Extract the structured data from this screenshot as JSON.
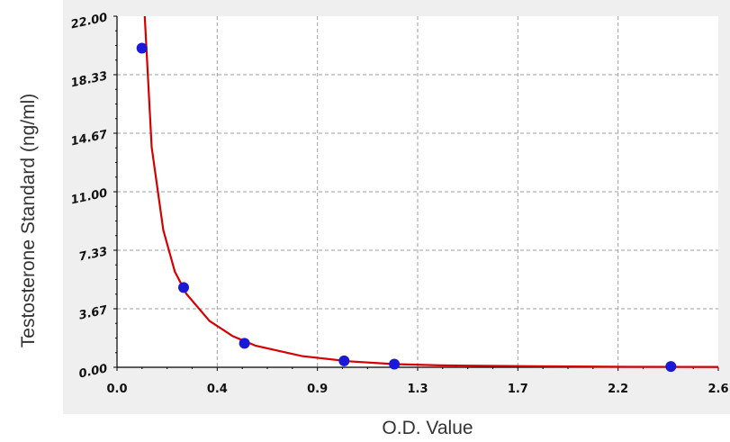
{
  "chart_data": {
    "type": "scatter",
    "title": "",
    "xlabel": "O.D. Value",
    "ylabel": "Testosterone Standard (ng/ml)",
    "xlim": [
      0.0,
      2.6
    ],
    "ylim": [
      0.0,
      22.0
    ],
    "x_ticks": [
      "0.0",
      "0.4",
      "0.9",
      "1.3",
      "1.7",
      "2.2",
      "2.6"
    ],
    "y_ticks": [
      "0.00",
      "3.67",
      "7.33",
      "11.00",
      "14.67",
      "18.33",
      "22.00"
    ],
    "grid": true,
    "legend": "none",
    "colors": {
      "points": "#1a1ad6",
      "curve": "#d40000",
      "frame": "#efefef"
    },
    "series": [
      {
        "kind": "points",
        "x": [
          0.108,
          0.288,
          0.551,
          0.982,
          1.199,
          2.395
        ],
        "y": [
          20.0,
          5.0,
          1.5,
          0.4,
          0.2,
          0.05
        ]
      },
      {
        "kind": "fit-curve",
        "x": [
          0.12,
          0.15,
          0.2,
          0.25,
          0.3,
          0.4,
          0.5,
          0.6,
          0.8,
          1.0,
          1.2,
          1.4,
          1.8,
          2.2,
          2.6
        ],
        "y": [
          22.0,
          13.8,
          8.6,
          6.0,
          4.6,
          2.9,
          1.95,
          1.35,
          0.7,
          0.38,
          0.2,
          0.12,
          0.06,
          0.03,
          0.02
        ]
      }
    ]
  }
}
